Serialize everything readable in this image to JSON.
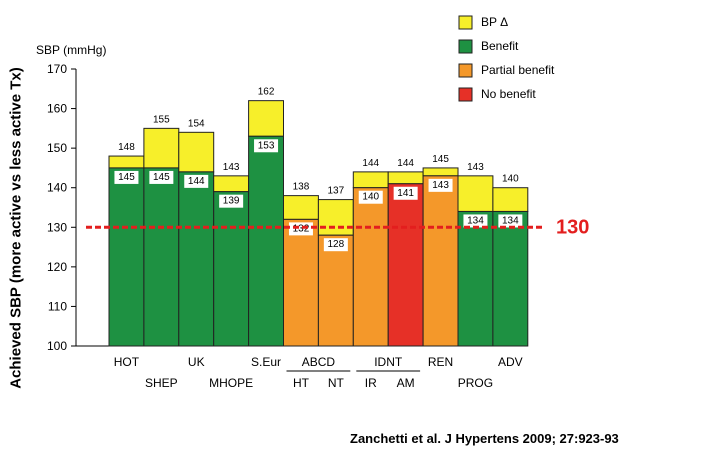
{
  "chart_data": {
    "type": "bar",
    "ylabel": "Achieved SBP (more active vs less active Tx)",
    "y_unit": "SBP (mmHg)",
    "ylim": [
      100,
      170
    ],
    "yticks": [
      100,
      110,
      120,
      130,
      140,
      150,
      160,
      170
    ],
    "grid": false,
    "legend_position": "top-right",
    "legend": [
      {
        "key": "bp_delta",
        "label": "BP Δ",
        "color": "#f7ef2a"
      },
      {
        "key": "benefit",
        "label": "Benefit",
        "color": "#1e9142"
      },
      {
        "key": "partial",
        "label": "Partial benefit",
        "color": "#f4982a"
      },
      {
        "key": "none",
        "label": "No benefit",
        "color": "#e63027"
      }
    ],
    "reference_line": {
      "value": 130,
      "label": "130",
      "color": "#e31e1e"
    },
    "bars": [
      {
        "name": "HOT",
        "less_active": 148,
        "more_active": 145,
        "outcome": "benefit"
      },
      {
        "name": "SHEP",
        "less_active": 155,
        "more_active": 145,
        "outcome": "benefit"
      },
      {
        "name": "UK",
        "less_active": 154,
        "more_active": 144,
        "outcome": "benefit"
      },
      {
        "name": "MHOPE",
        "less_active": 143,
        "more_active": 139,
        "outcome": "benefit"
      },
      {
        "name": "S.Eur",
        "less_active": 162,
        "more_active": 153,
        "outcome": "benefit"
      },
      {
        "name": "HT",
        "less_active": 138,
        "more_active": 132,
        "outcome": "partial"
      },
      {
        "name": "NT",
        "less_active": 137,
        "more_active": 128,
        "outcome": "partial"
      },
      {
        "name": "IR",
        "less_active": 144,
        "more_active": 140,
        "outcome": "partial"
      },
      {
        "name": "AM",
        "less_active": 144,
        "more_active": 141,
        "outcome": "none"
      },
      {
        "name": "REN",
        "less_active": 145,
        "more_active": 143,
        "outcome": "partial"
      },
      {
        "name": "PROG",
        "less_active": 143,
        "more_active": 134,
        "outcome": "benefit"
      },
      {
        "name": "ADV",
        "less_active": 140,
        "more_active": 134,
        "outcome": "benefit"
      }
    ],
    "groups": [
      {
        "label": "ABCD",
        "members": [
          "HT",
          "NT"
        ]
      },
      {
        "label": "IDNT",
        "members": [
          "IR",
          "AM"
        ]
      }
    ]
  },
  "citation": "Zanchetti et al. J Hypertens 2009; 27:923-93"
}
